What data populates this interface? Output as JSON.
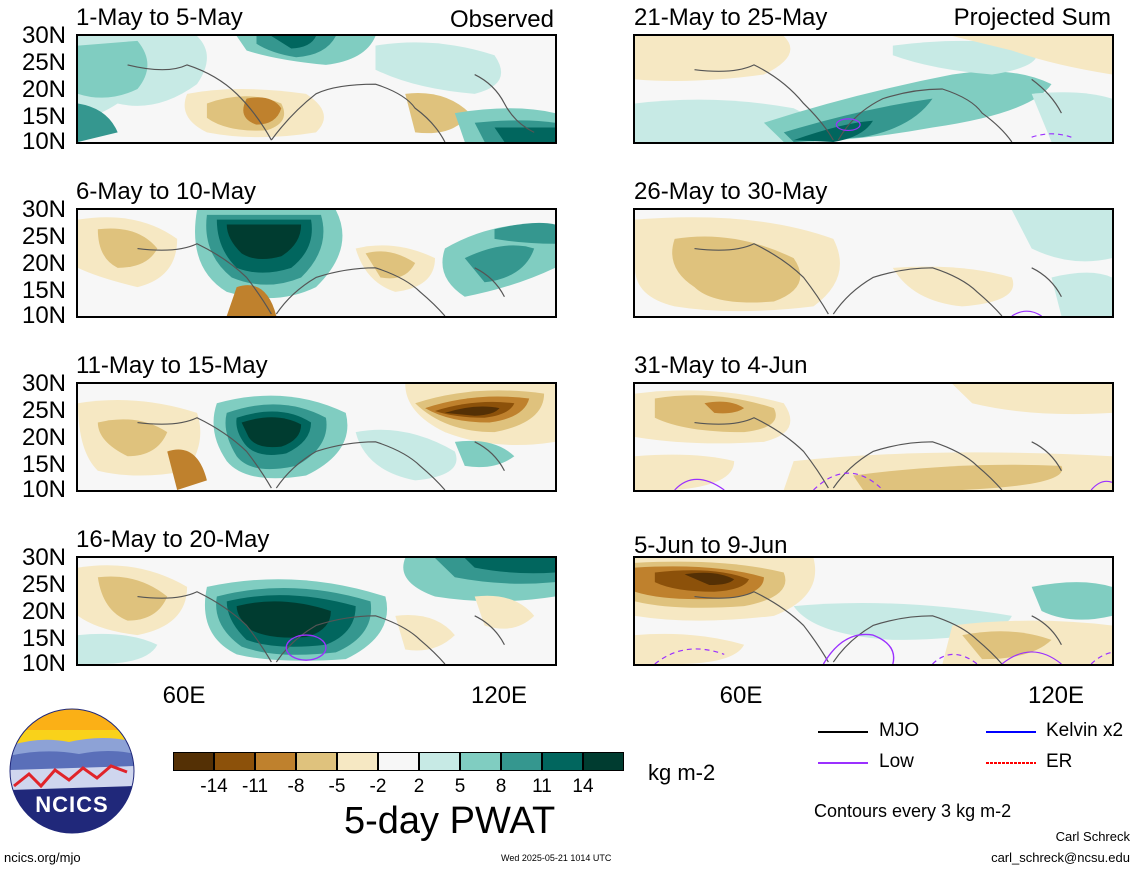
{
  "corner_labels": {
    "left": "Observed",
    "right": "Projected Sum"
  },
  "panels": [
    {
      "title": "1-May to 5-May"
    },
    {
      "title": "21-May to 25-May"
    },
    {
      "title": "6-May to 10-May"
    },
    {
      "title": "26-May to 30-May"
    },
    {
      "title": "11-May to 15-May"
    },
    {
      "title": "31-May to 4-Jun"
    },
    {
      "title": "16-May to 20-May"
    },
    {
      "title": "5-Jun to 9-Jun"
    }
  ],
  "lat_labels": [
    "30N",
    "25N",
    "20N",
    "15N",
    "10N"
  ],
  "lon_labels": [
    "60E",
    "120E"
  ],
  "colorbar": {
    "colors": [
      "#543005",
      "#8c510a",
      "#bf812d",
      "#dfc27d",
      "#f6e8c3",
      "#f7f7f7",
      "#c7eae5",
      "#80cdc1",
      "#35978f",
      "#01665e",
      "#003c30"
    ],
    "ticks": [
      "-14",
      "-11",
      "-8",
      "-5",
      "-2",
      "2",
      "5",
      "8",
      "11",
      "14"
    ],
    "units": "kg m-2",
    "title": "5-day PWAT"
  },
  "legend": [
    {
      "label": "MJO",
      "color": "#000000"
    },
    {
      "label": "Kelvin x2",
      "color": "#0000ff"
    },
    {
      "label": "Low",
      "color": "#9b30ff"
    },
    {
      "label": "ER",
      "color": "#ff0000"
    }
  ],
  "contour_note": "Contours every 3 kg m-2",
  "logo_text": "NCICS",
  "footer": {
    "url": "ncics.org/mjo",
    "timestamp": "Wed 2025-05-21 1014 UTC",
    "author": "Carl Schreck",
    "email": "carl_schreck@ncsu.edu"
  }
}
